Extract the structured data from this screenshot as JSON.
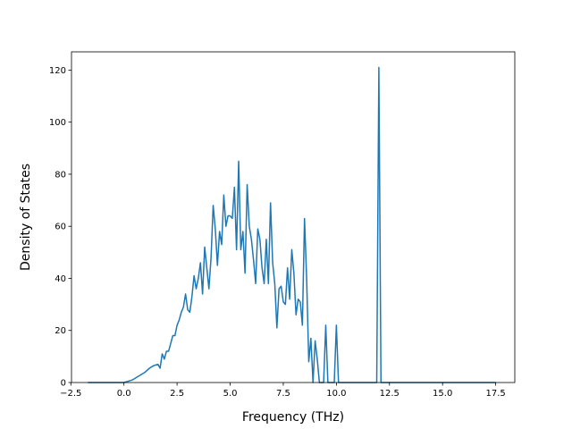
{
  "chart_data": {
    "type": "line",
    "title": "",
    "xlabel": "Frequency (THz)",
    "ylabel": "Density of States",
    "xlim": [
      -2.47,
      18.4
    ],
    "ylim": [
      0,
      127
    ],
    "x_ticks": [
      -2.5,
      0.0,
      2.5,
      5.0,
      7.5,
      10.0,
      12.5,
      15.0,
      17.5
    ],
    "x_tick_labels": [
      "−2.5",
      "0.0",
      "2.5",
      "5.0",
      "7.5",
      "10.0",
      "12.5",
      "15.0",
      "17.5"
    ],
    "y_ticks": [
      0,
      20,
      40,
      60,
      80,
      100,
      120
    ],
    "y_tick_labels": [
      "0",
      "20",
      "40",
      "60",
      "80",
      "100",
      "120"
    ],
    "grid": false,
    "legend": "none",
    "series": [
      {
        "color": "#1f77b4",
        "x": [
          -1.7,
          -1.0,
          0.0,
          0.2,
          0.4,
          0.6,
          0.8,
          1.0,
          1.2,
          1.4,
          1.6,
          1.7,
          1.8,
          1.9,
          2.0,
          2.1,
          2.2,
          2.3,
          2.4,
          2.5,
          2.6,
          2.7,
          2.8,
          2.9,
          3.0,
          3.1,
          3.2,
          3.3,
          3.4,
          3.5,
          3.6,
          3.7,
          3.8,
          3.9,
          4.0,
          4.1,
          4.2,
          4.3,
          4.4,
          4.5,
          4.6,
          4.7,
          4.8,
          4.9,
          5.0,
          5.1,
          5.2,
          5.3,
          5.4,
          5.5,
          5.6,
          5.7,
          5.8,
          5.9,
          6.0,
          6.1,
          6.2,
          6.3,
          6.4,
          6.5,
          6.6,
          6.7,
          6.8,
          6.9,
          7.0,
          7.1,
          7.2,
          7.3,
          7.4,
          7.5,
          7.6,
          7.7,
          7.8,
          7.9,
          8.0,
          8.1,
          8.2,
          8.3,
          8.4,
          8.5,
          8.6,
          8.7,
          8.8,
          8.9,
          9.0,
          9.1,
          9.2,
          9.3,
          9.4,
          9.5,
          9.6,
          9.7,
          9.8,
          9.9,
          10.0,
          10.1,
          10.2,
          10.5,
          11.5,
          11.9,
          12.0,
          12.1,
          12.3,
          14.0,
          17.5
        ],
        "y": [
          0,
          0,
          0,
          0.5,
          1,
          2,
          3,
          4,
          5.5,
          6.5,
          7,
          5.5,
          11,
          9,
          12,
          12,
          15,
          18,
          18,
          22,
          24,
          27,
          29,
          34,
          28,
          27,
          33,
          41,
          36,
          40,
          46,
          34,
          52,
          44,
          36,
          48,
          68,
          59,
          45,
          58,
          53,
          72,
          60,
          64,
          64,
          63,
          75,
          51,
          85,
          51,
          58,
          42,
          76,
          60,
          55,
          47,
          38,
          59,
          55,
          44,
          38,
          55,
          38,
          69,
          46,
          38,
          21,
          36,
          37,
          31,
          30,
          44,
          32,
          51,
          42,
          26,
          32,
          31,
          22,
          63,
          40,
          8,
          17,
          0,
          16,
          9,
          0,
          0,
          0,
          22,
          0,
          0,
          0,
          0,
          22,
          0,
          0,
          0,
          0,
          0,
          121,
          0,
          0,
          0,
          0
        ]
      }
    ]
  }
}
